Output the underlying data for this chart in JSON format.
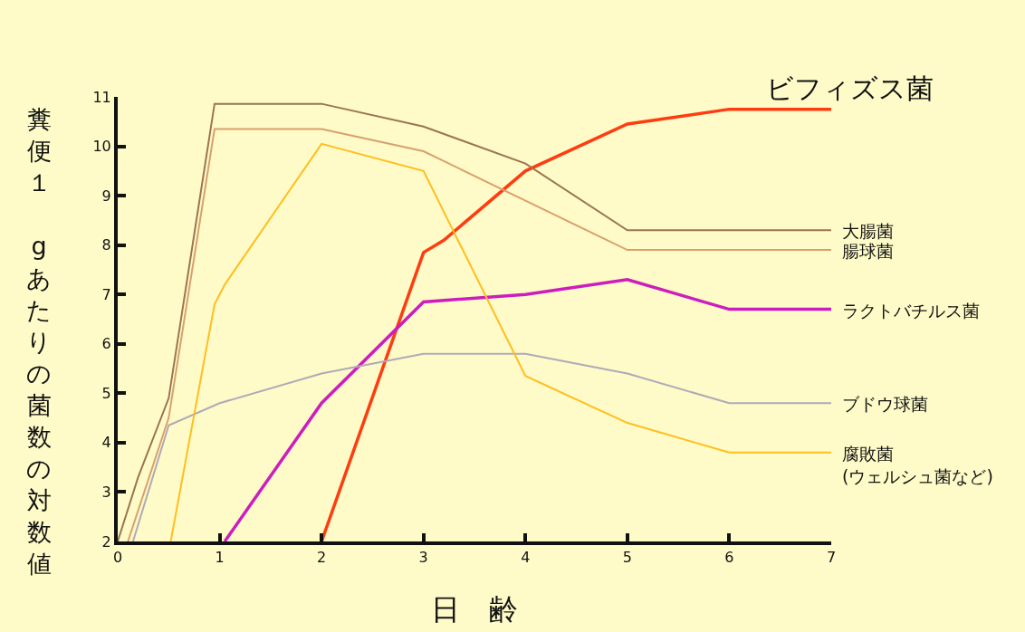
{
  "chart_data": {
    "type": "line",
    "xlabel": "日　齢",
    "ylabel": "糞便１ gあたりの菌数の対数値",
    "xlim": [
      0,
      7
    ],
    "xticks": [
      0,
      1,
      2,
      3,
      4,
      5,
      6,
      7
    ],
    "ylim": [
      2,
      11
    ],
    "yticks": [
      2,
      3,
      4,
      5,
      6,
      7,
      8,
      9,
      10,
      11
    ],
    "grid": false,
    "legend": false,
    "series": [
      {
        "name": "ビフィズス菌",
        "color": "#ff3c10",
        "x": [
          2,
          3,
          3.2,
          4,
          5,
          6,
          7
        ],
        "values": [
          2,
          7.85,
          8.1,
          9.5,
          10.45,
          10.75,
          10.75
        ]
      },
      {
        "name": "大腸菌",
        "color": "#9b7550",
        "x": [
          0,
          0.2,
          0.5,
          0.95,
          2,
          3,
          4,
          5,
          6,
          7
        ],
        "values": [
          2,
          3.3,
          4.9,
          10.86,
          10.86,
          10.4,
          9.65,
          8.3,
          8.3,
          8.3
        ]
      },
      {
        "name": "腸球菌",
        "color": "#d9a06e",
        "x": [
          0.1,
          0.5,
          0.95,
          2,
          3,
          4,
          5,
          6,
          7
        ],
        "values": [
          2,
          4.5,
          10.35,
          10.35,
          9.9,
          8.9,
          7.9,
          7.9,
          7.9
        ]
      },
      {
        "name": "ラクトバチルス菌",
        "color": "#cc1ebe",
        "x": [
          1.05,
          2,
          3,
          4,
          5,
          6,
          7
        ],
        "values": [
          2,
          4.8,
          6.85,
          7.0,
          7.3,
          6.7,
          6.7
        ]
      },
      {
        "name": "ブドウ球菌",
        "color": "#b0aab8",
        "x": [
          0.15,
          0.5,
          1,
          2,
          3,
          4,
          5,
          6,
          7
        ],
        "values": [
          2,
          4.35,
          4.8,
          5.4,
          5.8,
          5.8,
          5.4,
          4.8,
          4.8
        ]
      },
      {
        "name": "腐敗菌\n(ウェルシュ菌など)",
        "color": "#ffbe1e",
        "x": [
          0.52,
          0.95,
          1.05,
          2,
          3,
          4,
          5,
          6,
          7
        ],
        "values": [
          2,
          6.8,
          7.2,
          10.05,
          9.5,
          5.35,
          4.4,
          3.8,
          3.8
        ]
      }
    ]
  }
}
